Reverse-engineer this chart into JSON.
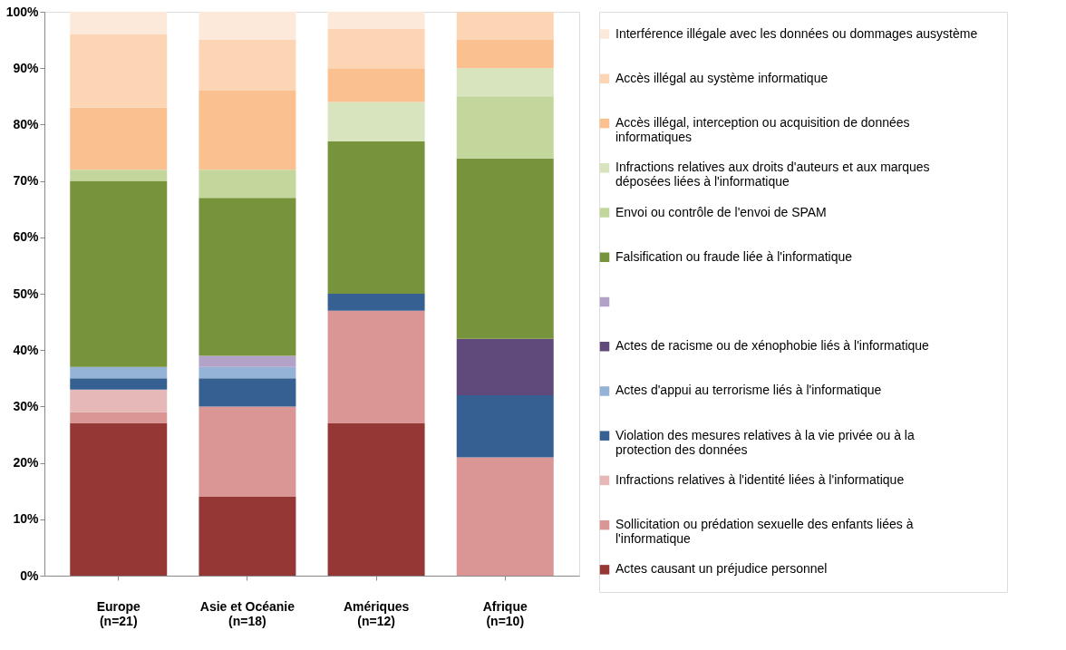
{
  "chart_data": {
    "type": "bar",
    "stacked": true,
    "categories": [
      "Europe\n(n=21)",
      "Asie et Océanie\n(n=18)",
      "Amériques\n(n=12)",
      "Afrique\n(n=10)"
    ],
    "series": [
      {
        "name": "Actes causant un préjudice personnel",
        "color": "#953735",
        "values": [
          27,
          14,
          27,
          0
        ]
      },
      {
        "name": "Sollicitation ou prédation sexuelle des enfants liées à l'informatique",
        "color": "#d99694",
        "values": [
          2,
          16,
          20,
          21
        ]
      },
      {
        "name": "Infractions relatives à l'identité liées à l'informatique",
        "color": "#e6b9b8",
        "values": [
          4,
          0,
          0,
          0
        ]
      },
      {
        "name": "Violation des mesures relatives à la vie privée ou à la protection des données",
        "color": "#376092",
        "values": [
          2,
          5,
          3,
          11
        ]
      },
      {
        "name": "Actes d'appui au terrorisme liés à l'informatique",
        "color": "#95b3d7",
        "values": [
          2,
          2,
          0,
          0
        ]
      },
      {
        "name": "Actes de racisme ou de xénophobie liés à l'informatique",
        "color": "#604a7b",
        "values": [
          0,
          0,
          0,
          10
        ]
      },
      {
        "color": "#b3a2c7",
        "values": [
          0,
          2,
          0,
          0
        ]
      },
      {
        "name": "Falsification ou fraude liée à l'informatique",
        "color": "#77933c",
        "values": [
          33,
          28,
          27,
          32
        ]
      },
      {
        "name": "Envoi ou contrôle de l'envoi de SPAM",
        "color": "#c3d69b",
        "values": [
          2,
          5,
          0,
          11
        ]
      },
      {
        "name": "Infractions relatives aux droits d'auteurs et aux marques déposées liées à l'informatique",
        "color": "#d7e4bd",
        "values": [
          0,
          0,
          7,
          5
        ]
      },
      {
        "name": "Accès illégal, interception ou acquisition de données informatiques",
        "color": "#fac090",
        "values": [
          11,
          14,
          6,
          5
        ]
      },
      {
        "name": "Accès illégal au système informatique",
        "color": "#fcd5b5",
        "values": [
          13,
          9,
          7,
          5
        ]
      },
      {
        "name": "Interférence illégale avec les données ou dommages ausystème",
        "color": "#fde9d9",
        "values": [
          4,
          5,
          3,
          0
        ]
      }
    ],
    "ylim": [
      0,
      100
    ],
    "yticks": [
      {
        "value": 0,
        "label": "0%"
      },
      {
        "value": 10,
        "label": "10%"
      },
      {
        "value": 20,
        "label": "20%"
      },
      {
        "value": 30,
        "label": "30%"
      },
      {
        "value": 40,
        "label": "40%"
      },
      {
        "value": 50,
        "label": "50%"
      },
      {
        "value": 60,
        "label": "60%"
      },
      {
        "value": 70,
        "label": "70%"
      },
      {
        "value": 80,
        "label": "80%"
      },
      {
        "value": 90,
        "label": "90%"
      },
      {
        "value": 100,
        "label": "100%"
      }
    ],
    "grid": false,
    "legend": "right"
  }
}
